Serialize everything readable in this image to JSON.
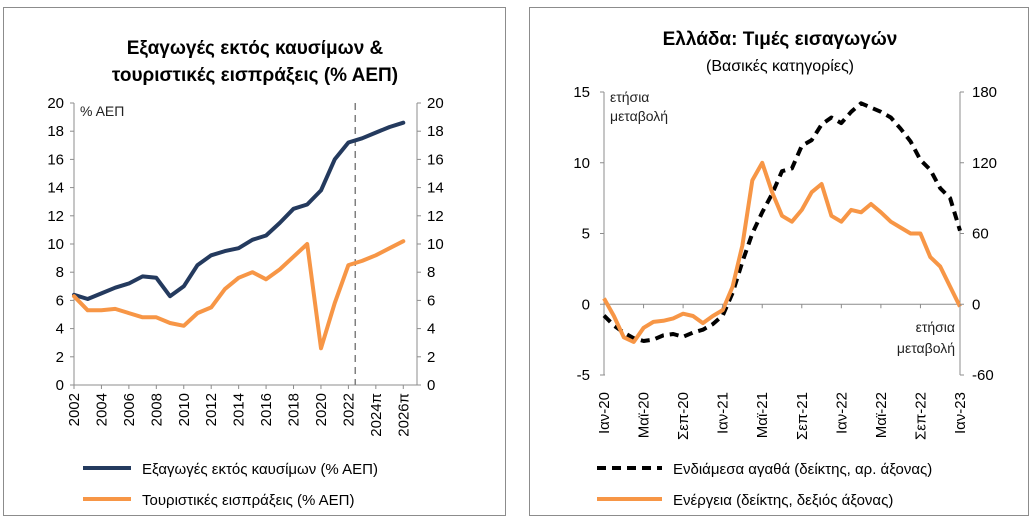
{
  "chart_data": [
    {
      "type": "line",
      "title_lines": [
        "Εξαγωγές εκτός καυσίμων &",
        "τουριστικές εισπράξεις (% ΑΕΠ)"
      ],
      "axis_unit_label": "% ΑΕΠ",
      "ylim": [
        0,
        20
      ],
      "yticks": [
        "0",
        "2",
        "4",
        "6",
        "8",
        "10",
        "12",
        "14",
        "16",
        "18",
        "20"
      ],
      "right_ylim": [
        0,
        20
      ],
      "right_yticks": [
        "0",
        "2",
        "4",
        "6",
        "8",
        "10",
        "12",
        "14",
        "16",
        "18",
        "20"
      ],
      "x_ticks": [
        "2002",
        "2004",
        "2006",
        "2008",
        "2010",
        "2012",
        "2014",
        "2016",
        "2018",
        "2020",
        "2022",
        "2024π",
        "2026π"
      ],
      "x_tick_values": [
        2002,
        2004,
        2006,
        2008,
        2010,
        2012,
        2014,
        2016,
        2018,
        2020,
        2022,
        2024,
        2026
      ],
      "xlim": [
        2002,
        2027
      ],
      "forecast_line_x": 2022.5,
      "series": [
        {
          "name": "Εξαγωγές εκτός καυσίμων (% ΑΕΠ)",
          "color": "#243a5e",
          "x": [
            2002,
            2003,
            2004,
            2005,
            2006,
            2007,
            2008,
            2009,
            2010,
            2011,
            2012,
            2013,
            2014,
            2015,
            2016,
            2017,
            2018,
            2019,
            2020,
            2021,
            2022,
            2023,
            2024,
            2025,
            2026
          ],
          "values": [
            6.4,
            6.1,
            6.5,
            6.9,
            7.2,
            7.7,
            7.6,
            6.3,
            7.0,
            8.5,
            9.2,
            9.5,
            9.7,
            10.3,
            10.6,
            11.5,
            12.5,
            12.8,
            13.8,
            16.0,
            17.2,
            17.5,
            17.9,
            18.3,
            18.6
          ]
        },
        {
          "name": "Τουριστικές εισπράξεις (% ΑΕΠ)",
          "color": "#f79646",
          "x": [
            2002,
            2003,
            2004,
            2005,
            2006,
            2007,
            2008,
            2009,
            2010,
            2011,
            2012,
            2013,
            2014,
            2015,
            2016,
            2017,
            2018,
            2019,
            2020,
            2021,
            2022,
            2023,
            2024,
            2025,
            2026
          ],
          "values": [
            6.3,
            5.3,
            5.3,
            5.4,
            5.1,
            4.8,
            4.8,
            4.4,
            4.2,
            5.1,
            5.5,
            6.8,
            7.6,
            8.0,
            7.5,
            8.2,
            9.1,
            10.0,
            2.6,
            5.8,
            8.5,
            8.8,
            9.2,
            9.7,
            10.2
          ]
        }
      ]
    },
    {
      "type": "line",
      "title": "Ελλάδα: Τιμές εισαγωγών",
      "subtitle": "(Βασικές κατηγορίες)",
      "left_axis_note_lines": [
        "ετήσια",
        "μεταβολή"
      ],
      "right_axis_note_lines": [
        "ετήσια",
        "μεταβολή"
      ],
      "ylim": [
        -5,
        15
      ],
      "yticks": [
        "-5",
        "0",
        "5",
        "10",
        "15"
      ],
      "right_ylim": [
        -60,
        180
      ],
      "right_yticks": [
        "-60",
        "0",
        "60",
        "120",
        "180"
      ],
      "x_ticks": [
        "Ιαν-20",
        "Μαϊ-20",
        "Σεπ-20",
        "Ιαν-21",
        "Μαϊ-21",
        "Σεπ-21",
        "Ιαν-22",
        "Μαϊ-22",
        "Σεπ-22",
        "Ιαν-23"
      ],
      "x_tick_values": [
        0,
        4,
        8,
        12,
        16,
        20,
        24,
        28,
        32,
        36
      ],
      "xlim": [
        0,
        36
      ],
      "series": [
        {
          "name": "Ενδιάμεσα αγαθά (δείκτης, αρ. άξονας)",
          "color": "#000000",
          "axis": "left",
          "dash": true,
          "x": [
            0,
            1,
            2,
            3,
            4,
            5,
            6,
            7,
            8,
            9,
            10,
            11,
            12,
            13,
            14,
            15,
            16,
            17,
            18,
            19,
            20,
            21,
            22,
            23,
            24,
            25,
            26,
            27,
            28,
            29,
            30,
            31,
            32,
            33,
            34,
            35,
            36
          ],
          "values": [
            -0.8,
            -1.5,
            -2.0,
            -2.4,
            -2.6,
            -2.5,
            -2.2,
            -2.1,
            -2.3,
            -2.0,
            -1.8,
            -1.4,
            -0.8,
            0.8,
            3.0,
            5.0,
            6.5,
            7.8,
            9.4,
            9.6,
            11.2,
            11.6,
            12.7,
            13.2,
            12.8,
            13.6,
            14.2,
            13.9,
            13.6,
            13.2,
            12.4,
            11.5,
            10.2,
            9.5,
            8.2,
            7.5,
            5.2
          ]
        },
        {
          "name": "Ενέργεια (δείκτης, δεξιός άξονας)",
          "color": "#f79646",
          "axis": "right",
          "dash": false,
          "x": [
            0,
            1,
            2,
            3,
            4,
            5,
            6,
            7,
            8,
            9,
            10,
            11,
            12,
            13,
            14,
            15,
            16,
            17,
            18,
            19,
            20,
            21,
            22,
            23,
            24,
            25,
            26,
            27,
            28,
            29,
            30,
            31,
            32,
            33,
            34,
            35,
            36
          ],
          "values": [
            5,
            -10,
            -28,
            -32,
            -20,
            -15,
            -14,
            -12,
            -8,
            -10,
            -16,
            -10,
            -5,
            15,
            50,
            105,
            120,
            95,
            75,
            70,
            80,
            95,
            102,
            75,
            70,
            80,
            78,
            85,
            78,
            70,
            65,
            60,
            60,
            40,
            32,
            15,
            -2
          ]
        }
      ]
    }
  ]
}
